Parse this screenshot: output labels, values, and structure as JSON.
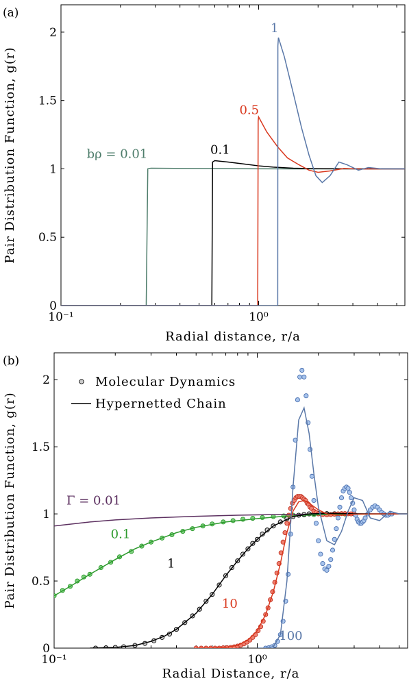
{
  "chart_data": [
    {
      "type": "line",
      "panel_label": "(a)",
      "xlabel": "Radial distance, r/a",
      "ylabel": "Pair Distribution Function, g(r)",
      "xscale": "log",
      "xlim": [
        0.1,
        5.5
      ],
      "ylim": [
        0,
        2.2
      ],
      "xticks": [
        {
          "value": 0.1,
          "label": "10⁻¹"
        },
        {
          "value": 1,
          "label": "10⁰"
        }
      ],
      "yticks": [
        {
          "value": 0,
          "label": "0"
        },
        {
          "value": 0.5,
          "label": "0.5"
        },
        {
          "value": 1,
          "label": "1"
        },
        {
          "value": 1.5,
          "label": "1.5"
        },
        {
          "value": 2,
          "label": "2"
        }
      ],
      "grid": false,
      "series": [
        {
          "name": "bρ = 0.01",
          "color": "#4e7d6b",
          "x": [
            0.1,
            0.27,
            0.275,
            0.285,
            0.4,
            0.7,
            1.5,
            5.5
          ],
          "y": [
            0,
            0,
            1.0,
            1.005,
            1.003,
            1.001,
            1.0,
            1.0
          ]
        },
        {
          "name": "0.1",
          "color": "#000000",
          "x": [
            0.1,
            0.58,
            0.585,
            0.6,
            0.7,
            0.85,
            1.0,
            1.2,
            1.5,
            2.0,
            5.5
          ],
          "y": [
            0,
            0,
            1.05,
            1.06,
            1.05,
            1.035,
            1.022,
            1.012,
            1.005,
            1.001,
            1.0
          ]
        },
        {
          "name": "0.5",
          "color": "#d9381e",
          "x": [
            0.1,
            0.99,
            0.995,
            1.0,
            1.1,
            1.25,
            1.4,
            1.6,
            1.8,
            2.0,
            2.3,
            2.7,
            3.2,
            5.5
          ],
          "y": [
            0,
            0,
            1.35,
            1.38,
            1.27,
            1.16,
            1.08,
            1.03,
            0.99,
            0.975,
            0.985,
            1.003,
            0.999,
            1.0
          ]
        },
        {
          "name": "1",
          "color": "#5a78a8",
          "x": [
            0.1,
            1.25,
            1.252,
            1.26,
            1.35,
            1.5,
            1.65,
            1.8,
            1.95,
            2.1,
            2.3,
            2.55,
            2.8,
            3.2,
            3.6,
            4.2,
            5.5
          ],
          "y": [
            0,
            0,
            1.9,
            1.96,
            1.82,
            1.55,
            1.3,
            1.1,
            0.95,
            0.9,
            0.95,
            1.05,
            1.03,
            0.99,
            1.01,
            1.0,
            1.0
          ]
        }
      ],
      "annotations": [
        {
          "text": "bρ = 0.01",
          "x": 0.135,
          "y": 1.08,
          "color": "#4e7d6b"
        },
        {
          "text": "0.1",
          "x": 0.57,
          "y": 1.11,
          "color": "#000000"
        },
        {
          "text": "0.5",
          "x": 0.8,
          "y": 1.4,
          "color": "#d9381e"
        },
        {
          "text": "1",
          "x": 1.15,
          "y": 2.0,
          "color": "#5a78a8"
        }
      ]
    },
    {
      "type": "line",
      "panel_label": "(b)",
      "xlabel": "Radial Distance, r/a",
      "ylabel": "Pair Distribution Function, g(r)",
      "xscale": "log",
      "xlim": [
        0.1,
        5.5
      ],
      "ylim": [
        0,
        2.2
      ],
      "xticks": [
        {
          "value": 0.1,
          "label": "10⁻¹"
        },
        {
          "value": 1,
          "label": "10⁰"
        }
      ],
      "yticks": [
        {
          "value": 0,
          "label": "0"
        },
        {
          "value": 0.5,
          "label": "0.5"
        },
        {
          "value": 1,
          "label": "1"
        },
        {
          "value": 1.5,
          "label": "1.5"
        },
        {
          "value": 2,
          "label": "2"
        }
      ],
      "grid": false,
      "legend": {
        "placement": "top-left",
        "entries": [
          "Molecular Dynamics",
          "Hypernetted Chain"
        ]
      },
      "series": [
        {
          "name": "Γ = 0.01",
          "color": "#5c3060",
          "x": [
            0.1,
            0.15,
            0.2,
            0.3,
            0.5,
            0.8,
            1.2,
            2.0,
            3.0,
            5.5
          ],
          "y": [
            0.91,
            0.94,
            0.955,
            0.97,
            0.982,
            0.99,
            0.995,
            0.998,
            0.999,
            1.0
          ]
        },
        {
          "name": "0.1",
          "color": "#2d9a2d",
          "x": [
            0.1,
            0.12,
            0.15,
            0.2,
            0.25,
            0.3,
            0.4,
            0.5,
            0.7,
            1.0,
            1.3,
            1.7,
            2.5,
            5.5
          ],
          "y": [
            0.39,
            0.46,
            0.55,
            0.66,
            0.74,
            0.79,
            0.86,
            0.9,
            0.94,
            0.965,
            0.98,
            0.99,
            0.997,
            1.0
          ]
        },
        {
          "name": "1",
          "color": "#000000",
          "x": [
            0.15,
            0.2,
            0.25,
            0.3,
            0.35,
            0.4,
            0.5,
            0.6,
            0.7,
            0.8,
            0.9,
            1.0,
            1.2,
            1.5,
            1.8,
            2.2,
            3.0,
            5.5
          ],
          "y": [
            0.0,
            0.005,
            0.02,
            0.05,
            0.09,
            0.14,
            0.26,
            0.4,
            0.54,
            0.65,
            0.74,
            0.81,
            0.91,
            0.98,
            1.0,
            1.005,
            1.001,
            1.0
          ]
        },
        {
          "name": "10",
          "color": "#d9381e",
          "x": [
            0.5,
            0.6,
            0.7,
            0.8,
            0.9,
            1.0,
            1.1,
            1.2,
            1.3,
            1.4,
            1.5,
            1.6,
            1.7,
            1.8,
            2.0,
            2.2,
            2.5,
            3.0,
            4.0,
            5.5
          ],
          "y": [
            0.0,
            0.0,
            0.005,
            0.02,
            0.06,
            0.13,
            0.25,
            0.42,
            0.63,
            0.86,
            1.02,
            1.09,
            1.1,
            1.08,
            1.03,
            1.0,
            0.99,
            0.998,
            1.0,
            1.0
          ]
        },
        {
          "name": "100",
          "color": "#5a78a8",
          "x": [
            1.0,
            1.1,
            1.2,
            1.3,
            1.4,
            1.5,
            1.6,
            1.7,
            1.8,
            1.9,
            2.0,
            2.2,
            2.4,
            2.6,
            2.8,
            3.0,
            3.3,
            3.6,
            4.0,
            4.5,
            5.0,
            5.5
          ],
          "y": [
            0.0,
            0.0,
            0.01,
            0.1,
            0.5,
            1.2,
            1.7,
            1.79,
            1.6,
            1.3,
            1.05,
            0.8,
            0.77,
            0.87,
            1.02,
            1.12,
            1.1,
            0.97,
            0.95,
            1.02,
            1.0,
            1.0
          ]
        }
      ],
      "scatter_series": [
        {
          "name": "Molecular Dynamics Γ = 0.1",
          "color": "#2d9a2d",
          "fill": "#7fd07f",
          "x": [
            0.1,
            0.11,
            0.12,
            0.13,
            0.14,
            0.15,
            0.17,
            0.19,
            0.21,
            0.24,
            0.27,
            0.3,
            0.34,
            0.38,
            0.43,
            0.48,
            0.54,
            0.6,
            0.68,
            0.76,
            0.85,
            0.95,
            1.06,
            1.2,
            1.35,
            1.5,
            1.7,
            1.9,
            2.1,
            2.4,
            2.7,
            3.0
          ],
          "y": [
            0.39,
            0.43,
            0.46,
            0.5,
            0.53,
            0.55,
            0.6,
            0.64,
            0.68,
            0.72,
            0.76,
            0.79,
            0.82,
            0.845,
            0.87,
            0.89,
            0.91,
            0.925,
            0.94,
            0.95,
            0.96,
            0.967,
            0.973,
            0.98,
            0.985,
            0.99,
            0.993,
            0.995,
            0.997,
            0.998,
            0.999,
            1.0
          ]
        },
        {
          "name": "Molecular Dynamics Γ = 1",
          "color": "#000000",
          "fill": "#cccccc",
          "x": [
            0.16,
            0.18,
            0.2,
            0.22,
            0.25,
            0.28,
            0.31,
            0.34,
            0.37,
            0.4,
            0.44,
            0.48,
            0.52,
            0.56,
            0.6,
            0.65,
            0.7,
            0.75,
            0.8,
            0.85,
            0.9,
            0.95,
            1.0,
            1.06,
            1.12,
            1.2,
            1.3,
            1.4,
            1.5,
            1.6,
            1.7,
            1.8,
            1.9,
            2.0,
            2.2,
            2.4
          ],
          "y": [
            0.0,
            0.002,
            0.005,
            0.01,
            0.02,
            0.035,
            0.055,
            0.08,
            0.105,
            0.14,
            0.19,
            0.24,
            0.29,
            0.35,
            0.4,
            0.47,
            0.54,
            0.6,
            0.65,
            0.7,
            0.74,
            0.78,
            0.81,
            0.85,
            0.88,
            0.91,
            0.94,
            0.965,
            0.98,
            0.99,
            0.996,
            1.0,
            1.003,
            1.004,
            1.002,
            1.001
          ]
        },
        {
          "name": "Molecular Dynamics Γ = 10",
          "color": "#c03020",
          "fill": "#f08070",
          "x": [
            0.5,
            0.53,
            0.56,
            0.59,
            0.62,
            0.65,
            0.68,
            0.71,
            0.74,
            0.77,
            0.8,
            0.83,
            0.86,
            0.89,
            0.92,
            0.95,
            0.98,
            1.01,
            1.04,
            1.07,
            1.1,
            1.13,
            1.16,
            1.19,
            1.22,
            1.25,
            1.28,
            1.31,
            1.34,
            1.37,
            1.4,
            1.43,
            1.46,
            1.49,
            1.52,
            1.55,
            1.58,
            1.61,
            1.64,
            1.67,
            1.7,
            1.73,
            1.76,
            1.79,
            1.82,
            1.85,
            1.9,
            1.95,
            2.0,
            2.1,
            2.2,
            2.3,
            2.4,
            2.5,
            2.6,
            2.7,
            2.8,
            2.9,
            3.0
          ],
          "y": [
            0.0,
            0.0,
            0.0,
            0.0,
            0.0,
            0.0,
            0.002,
            0.003,
            0.005,
            0.009,
            0.015,
            0.022,
            0.032,
            0.045,
            0.06,
            0.08,
            0.1,
            0.13,
            0.16,
            0.2,
            0.25,
            0.3,
            0.36,
            0.42,
            0.49,
            0.56,
            0.63,
            0.71,
            0.79,
            0.86,
            0.93,
            0.99,
            1.04,
            1.08,
            1.1,
            1.12,
            1.13,
            1.13,
            1.13,
            1.12,
            1.11,
            1.1,
            1.08,
            1.07,
            1.05,
            1.04,
            1.02,
            1.01,
            1.0,
            0.995,
            0.993,
            0.995,
            0.998,
            1.0,
            1.002,
            1.002,
            1.001,
            1.0,
            1.0
          ]
        },
        {
          "name": "Molecular Dynamics Γ = 100",
          "color": "#4a70b0",
          "fill": "#a8c4ec",
          "x": [
            1.1,
            1.14,
            1.18,
            1.22,
            1.26,
            1.3,
            1.34,
            1.38,
            1.42,
            1.46,
            1.5,
            1.54,
            1.58,
            1.62,
            1.66,
            1.7,
            1.74,
            1.78,
            1.82,
            1.86,
            1.9,
            1.95,
            2.0,
            2.05,
            2.1,
            2.15,
            2.2,
            2.25,
            2.3,
            2.35,
            2.4,
            2.45,
            2.5,
            2.55,
            2.6,
            2.65,
            2.7,
            2.75,
            2.8,
            2.85,
            2.9,
            2.95,
            3.0,
            3.05,
            3.1,
            3.15,
            3.2,
            3.25,
            3.3,
            3.35,
            3.4,
            3.5,
            3.6,
            3.7,
            3.8,
            3.9,
            4.0,
            4.1,
            4.2,
            4.3,
            4.4,
            4.5,
            4.6
          ],
          "y": [
            0.0,
            0.003,
            0.01,
            0.02,
            0.05,
            0.1,
            0.2,
            0.35,
            0.55,
            0.85,
            1.2,
            1.55,
            1.85,
            2.02,
            2.07,
            2.02,
            1.88,
            1.68,
            1.48,
            1.28,
            1.1,
            0.93,
            0.8,
            0.7,
            0.63,
            0.59,
            0.58,
            0.61,
            0.66,
            0.73,
            0.81,
            0.89,
            0.97,
            1.05,
            1.12,
            1.17,
            1.19,
            1.2,
            1.19,
            1.16,
            1.12,
            1.08,
            1.03,
            0.99,
            0.96,
            0.94,
            0.93,
            0.93,
            0.94,
            0.95,
            0.97,
            1.0,
            1.03,
            1.05,
            1.06,
            1.05,
            1.03,
            1.01,
            1.0,
            0.99,
            0.99,
            1.0,
            1.0
          ]
        }
      ],
      "annotations": [
        {
          "text": "Γ = 0.01",
          "x": 0.115,
          "y": 1.07,
          "color": "#5c3060"
        },
        {
          "text": "0.1",
          "x": 0.19,
          "y": 0.82,
          "color": "#2d9a2d"
        },
        {
          "text": "1",
          "x": 0.36,
          "y": 0.6,
          "color": "#000000"
        },
        {
          "text": "10",
          "x": 0.67,
          "y": 0.3,
          "color": "#d9381e"
        },
        {
          "text": "100",
          "x": 1.28,
          "y": 0.06,
          "color": "#5a78a8"
        }
      ]
    }
  ]
}
